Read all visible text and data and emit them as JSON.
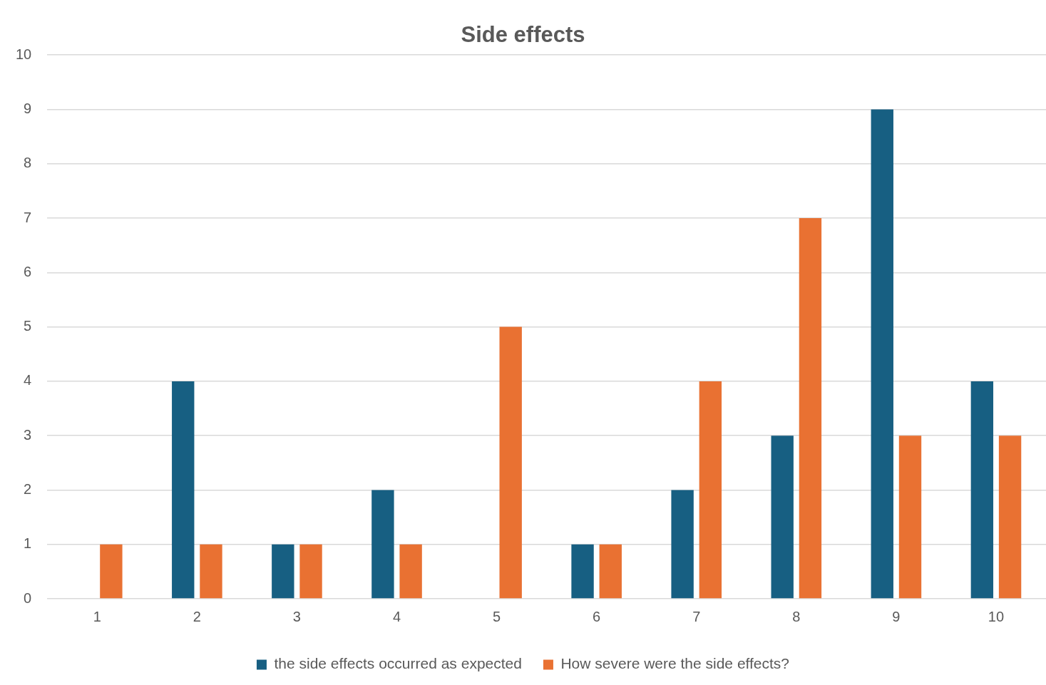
{
  "chart_data": {
    "type": "bar",
    "title": "Side effects",
    "categories": [
      "1",
      "2",
      "3",
      "4",
      "5",
      "6",
      "7",
      "8",
      "9",
      "10"
    ],
    "series": [
      {
        "name": "the side effects occurred as expected",
        "color": "#175f82",
        "values": [
          0,
          4,
          1,
          2,
          0,
          1,
          2,
          3,
          9,
          4
        ]
      },
      {
        "name": "How severe were the side effects?",
        "color": "#e97132",
        "values": [
          1,
          1,
          1,
          1,
          5,
          1,
          4,
          7,
          3,
          3
        ]
      }
    ],
    "ylim": [
      0,
      10
    ],
    "yticks": [
      0,
      1,
      2,
      3,
      4,
      5,
      6,
      7,
      8,
      9,
      10
    ],
    "grid": "y",
    "legend": "bottom"
  }
}
